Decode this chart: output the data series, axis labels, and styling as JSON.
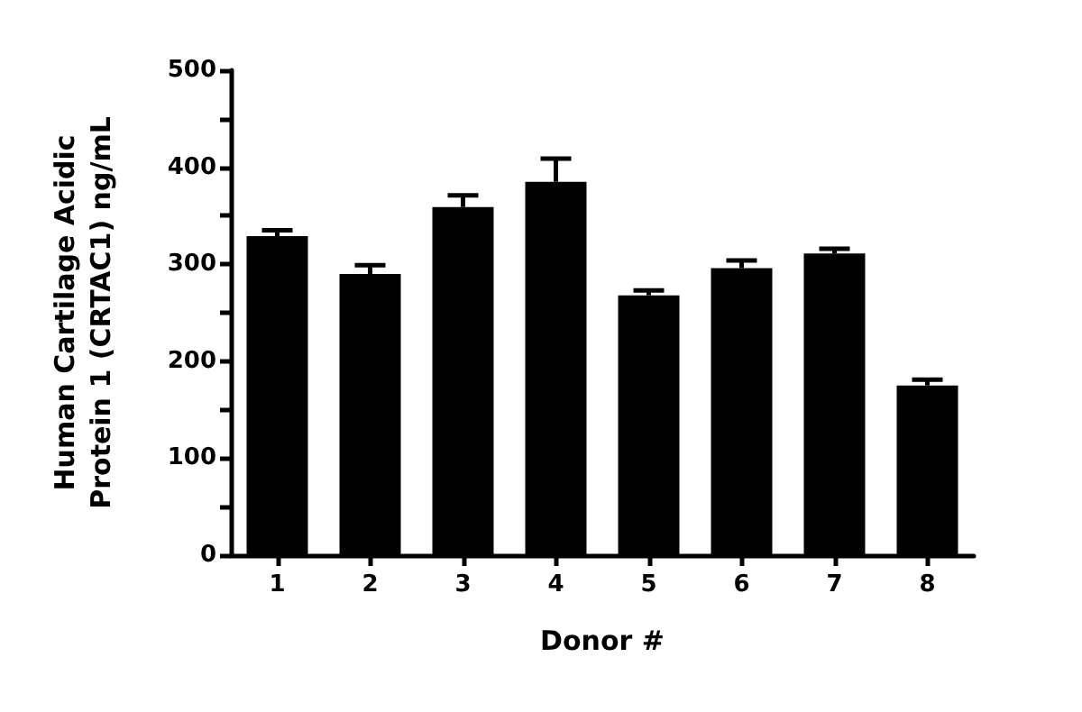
{
  "chart_data": {
    "type": "bar",
    "xlabel": "Donor #",
    "ylabel": "Human Cartilage Acidic\nProtein 1 (CRTAC1) ng/mL",
    "categories": [
      "1",
      "2",
      "3",
      "4",
      "5",
      "6",
      "7",
      "8"
    ],
    "values": [
      329,
      290,
      359,
      385,
      268,
      296,
      311,
      175
    ],
    "errors": [
      [
        329,
        335
      ],
      [
        290,
        299
      ],
      [
        359,
        371
      ],
      [
        385,
        409
      ],
      [
        268,
        273
      ],
      [
        296,
        304
      ],
      [
        311,
        316
      ],
      [
        175,
        181
      ]
    ],
    "color": "#000000",
    "ylim": [
      0,
      500
    ],
    "yticks": [
      0,
      {
        "value": 50,
        "label": null
      },
      100,
      {
        "value": 150,
        "label": null
      },
      200,
      {
        "value": 250,
        "label": null
      },
      300,
      {
        "value": 350,
        "label": null
      },
      400,
      {
        "value": 450,
        "label": null
      },
      500
    ],
    "grid": false
  }
}
